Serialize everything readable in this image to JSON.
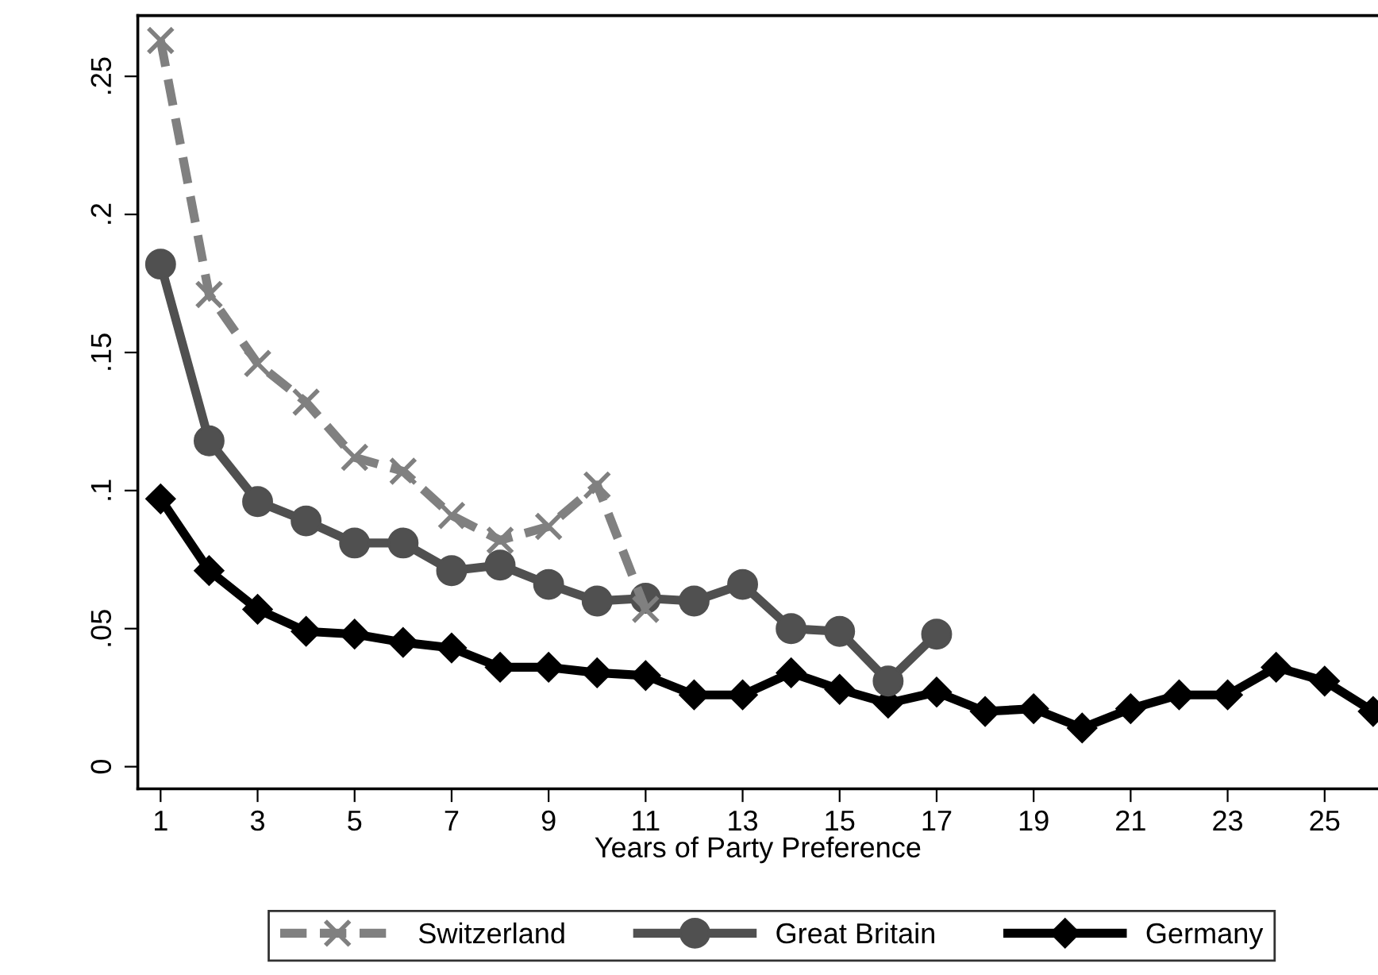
{
  "chart_data": {
    "type": "line",
    "xlabel": "Years of Party Preference",
    "x": [
      1,
      2,
      3,
      4,
      5,
      6,
      7,
      8,
      9,
      10,
      11,
      12,
      13,
      14,
      15,
      16,
      17,
      18,
      19,
      20,
      21,
      22,
      23,
      24,
      25,
      26
    ],
    "series": [
      {
        "name": "Switzerland",
        "color": "#808080",
        "marker": "cross",
        "line_style": "dashed",
        "x": [
          1,
          2,
          3,
          4,
          5,
          6,
          7,
          8,
          9,
          10,
          11
        ],
        "values": [
          0.263,
          0.171,
          0.146,
          0.132,
          0.112,
          0.107,
          0.091,
          0.082,
          0.087,
          0.102,
          0.057
        ]
      },
      {
        "name": "Great Britain",
        "color": "#505050",
        "marker": "circle",
        "line_style": "solid",
        "x": [
          1,
          2,
          3,
          4,
          5,
          6,
          7,
          8,
          9,
          10,
          11,
          12,
          13,
          14,
          15,
          16,
          17
        ],
        "values": [
          0.182,
          0.118,
          0.096,
          0.089,
          0.081,
          0.081,
          0.071,
          0.073,
          0.066,
          0.06,
          0.061,
          0.06,
          0.066,
          0.05,
          0.049,
          0.031,
          0.048
        ]
      },
      {
        "name": "Germany",
        "color": "#000000",
        "marker": "diamond",
        "line_style": "solid",
        "values": [
          0.097,
          0.071,
          0.057,
          0.049,
          0.048,
          0.045,
          0.043,
          0.036,
          0.036,
          0.034,
          0.033,
          0.026,
          0.026,
          0.034,
          0.028,
          0.023,
          0.027,
          0.02,
          0.021,
          0.014,
          0.021,
          0.026,
          0.026,
          0.036,
          0.031,
          0.02
        ]
      }
    ],
    "xlim": [
      0.53,
      26.1
    ],
    "xticks": [
      1,
      3,
      5,
      7,
      9,
      11,
      13,
      15,
      17,
      19,
      21,
      23,
      25
    ],
    "ylim": [
      -0.008,
      0.272
    ],
    "yticks": [
      {
        "value": 0,
        "label": "0"
      },
      {
        "value": 0.05,
        "label": ".05"
      },
      {
        "value": 0.1,
        "label": ".1"
      },
      {
        "value": 0.15,
        "label": ".15"
      },
      {
        "value": 0.2,
        "label": ".2"
      },
      {
        "value": 0.25,
        "label": ".25"
      }
    ],
    "grid": false,
    "legend": "bottom"
  }
}
